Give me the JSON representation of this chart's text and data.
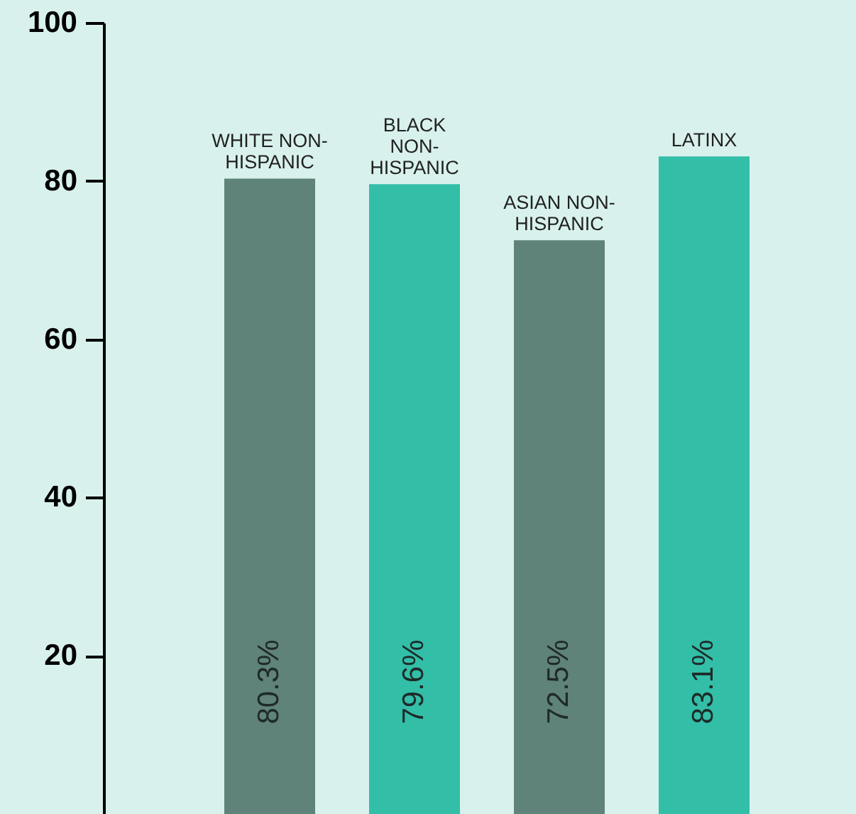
{
  "chart_data": {
    "type": "bar",
    "categories": [
      "WHITE NON-\nHISPANIC",
      "BLACK\nNON-\nHISPANIC",
      "ASIAN NON-\nHISPANIC",
      "LATINX"
    ],
    "values": [
      80.3,
      79.6,
      72.5,
      83.1
    ],
    "value_labels": [
      "80.3%",
      "79.6%",
      "72.5%",
      "83.1%"
    ],
    "colors": [
      "#5f8279",
      "#33bea8",
      "#5f8279",
      "#33bea8"
    ],
    "ylim": [
      0,
      100
    ],
    "yticks": [
      20,
      40,
      60,
      80,
      100
    ],
    "grid": false
  }
}
